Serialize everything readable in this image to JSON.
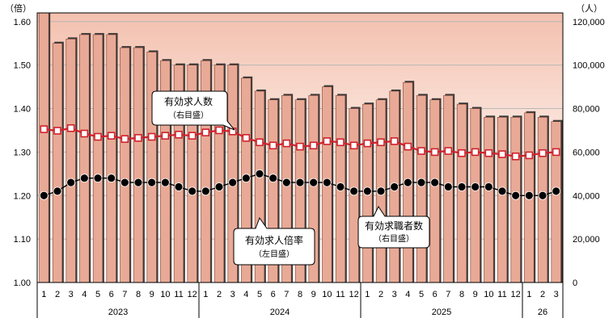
{
  "chart_data": {
    "type": "bar",
    "left_axis_unit": "（倍）",
    "right_axis_unit": "（人）",
    "ylim_left": [
      1.0,
      1.62
    ],
    "ylim_right": [
      0,
      124000
    ],
    "left_ticks": [
      "1.00",
      "1.10",
      "1.20",
      "1.30",
      "1.40",
      "1.50",
      "1.60"
    ],
    "right_ticks": [
      "0",
      "20,000",
      "40,000",
      "60,000",
      "80,000",
      "100,000",
      "120,000"
    ],
    "months": [
      "1",
      "2",
      "3",
      "4",
      "5",
      "6",
      "7",
      "8",
      "9",
      "10",
      "11",
      "12",
      "1",
      "2",
      "3",
      "4",
      "5",
      "6",
      "7",
      "8",
      "9",
      "10",
      "11",
      "12",
      "1",
      "2",
      "3",
      "4",
      "5",
      "6",
      "7",
      "8",
      "9",
      "10",
      "11",
      "12",
      "1",
      "2",
      "3"
    ],
    "years": [
      {
        "label": "2023",
        "start": 0,
        "end": 12
      },
      {
        "label": "2024",
        "start": 12,
        "end": 24
      },
      {
        "label": "2025",
        "start": 24,
        "end": 36
      },
      {
        "label": "26",
        "start": 36,
        "end": 39
      }
    ],
    "series": [
      {
        "name": "有効求人倍率",
        "axis_note": "（左目盛）",
        "type": "line",
        "marker": "filled-circle",
        "values": [
          1.2,
          1.21,
          1.23,
          1.24,
          1.24,
          1.24,
          1.23,
          1.23,
          1.23,
          1.23,
          1.22,
          1.21,
          1.21,
          1.22,
          1.23,
          1.24,
          1.25,
          1.24,
          1.23,
          1.23,
          1.23,
          1.23,
          1.22,
          1.21,
          1.21,
          1.21,
          1.22,
          1.23,
          1.23,
          1.23,
          1.22,
          1.22,
          1.22,
          1.22,
          1.21,
          1.2,
          1.2,
          1.2,
          1.21
        ]
      },
      {
        "name": "有効求人数",
        "axis_note": "（右目盛）",
        "type": "bar",
        "values": [
          124000,
          110000,
          112000,
          114000,
          114000,
          114000,
          108000,
          108000,
          106000,
          102000,
          100000,
          100000,
          102000,
          100000,
          100000,
          94000,
          88000,
          84000,
          86000,
          84000,
          86000,
          90000,
          86000,
          80000,
          82000,
          84000,
          88000,
          92000,
          86000,
          84000,
          86000,
          82000,
          80000,
          76000,
          76000,
          76000,
          78000,
          76000,
          74000
        ]
      },
      {
        "name": "有効求職者数",
        "axis_note": "（右目盛）",
        "type": "line",
        "marker": "open-square",
        "values": [
          70500,
          69800,
          71000,
          68500,
          67000,
          67500,
          66000,
          66500,
          67000,
          67500,
          68000,
          67500,
          69000,
          70000,
          69500,
          66500,
          64500,
          63000,
          64000,
          62500,
          63000,
          65000,
          64500,
          63000,
          64000,
          64500,
          65000,
          62500,
          60500,
          60000,
          60500,
          59500,
          60000,
          59500,
          59000,
          58000,
          58500,
          59500,
          60000
        ]
      }
    ],
    "colors": {
      "bar_fill": "#e8aa96",
      "bar_shadow": "#3a3a3a",
      "bg_top": "#f3c0ae",
      "bg_bottom": "#ffffff",
      "grid": "#b8b8b8",
      "ratio_marker": "#000000",
      "jobseeker_line": "#d0202a"
    }
  }
}
